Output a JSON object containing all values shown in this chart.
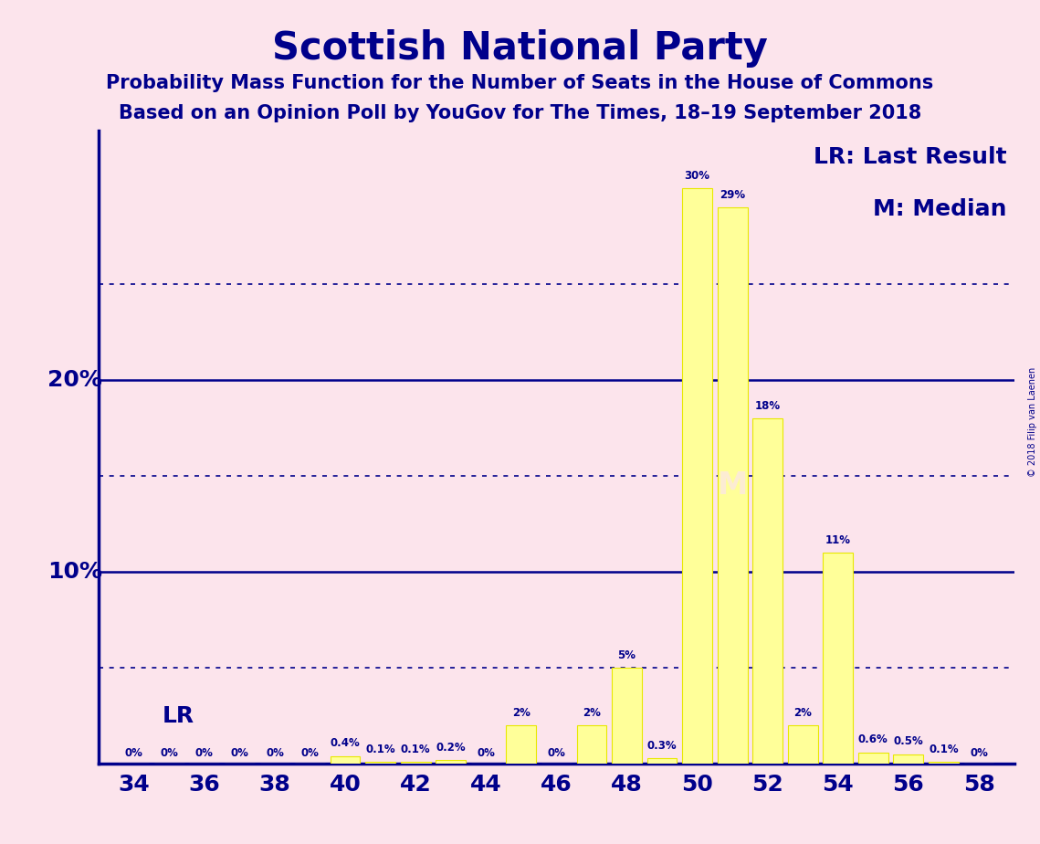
{
  "title": "Scottish National Party",
  "subtitle1": "Probability Mass Function for the Number of Seats in the House of Commons",
  "subtitle2": "Based on an Opinion Poll by YouGov for The Times, 18–19 September 2018",
  "copyright": "© 2018 Filip van Laenen",
  "background_color": "#fce4ec",
  "bar_color": "#ffff99",
  "bar_edge_color": "#e8e800",
  "axis_color": "#00008B",
  "text_color": "#00008B",
  "seats": [
    34,
    35,
    36,
    37,
    38,
    39,
    40,
    41,
    42,
    43,
    44,
    45,
    46,
    47,
    48,
    49,
    50,
    51,
    52,
    53,
    54,
    55,
    56,
    57,
    58
  ],
  "probabilities": [
    0.0,
    0.0,
    0.0,
    0.0,
    0.0,
    0.0,
    0.4,
    0.1,
    0.1,
    0.2,
    0.0,
    2.0,
    0.0,
    2.0,
    5.0,
    0.3,
    30.0,
    29.0,
    18.0,
    2.0,
    11.0,
    0.6,
    0.5,
    0.1,
    0.0
  ],
  "label_map": {
    "34": "0%",
    "35": "0%",
    "36": "0%",
    "37": "0%",
    "38": "0%",
    "39": "0%",
    "40": "0.4%",
    "41": "0.1%",
    "42": "0.1%",
    "43": "0.2%",
    "44": "0%",
    "45": "2%",
    "46": "0%",
    "47": "2%",
    "48": "5%",
    "49": "0.3%",
    "50": "30%",
    "51": "29%",
    "52": "18%",
    "53": "2%",
    "54": "11%",
    "55": "0.6%",
    "56": "0.5%",
    "57": "0.1%",
    "58": "0%"
  },
  "lr_seat": 35,
  "median_seat": 51,
  "xlim": [
    33,
    59
  ],
  "ylim": [
    0,
    33
  ],
  "major_yticks": [
    10,
    20
  ],
  "minor_yticks": [
    5,
    15,
    25
  ],
  "major_ytick_labels": [
    "10%",
    "20%"
  ],
  "legend_lr": "LR: Last Result",
  "legend_m": "M: Median",
  "lr_label": "LR",
  "m_label": "M",
  "bar_width": 0.85,
  "label_fontsize": 8.5,
  "axis_label_fontsize": 18,
  "title_fontsize": 30,
  "subtitle_fontsize": 15,
  "legend_fontsize": 18
}
